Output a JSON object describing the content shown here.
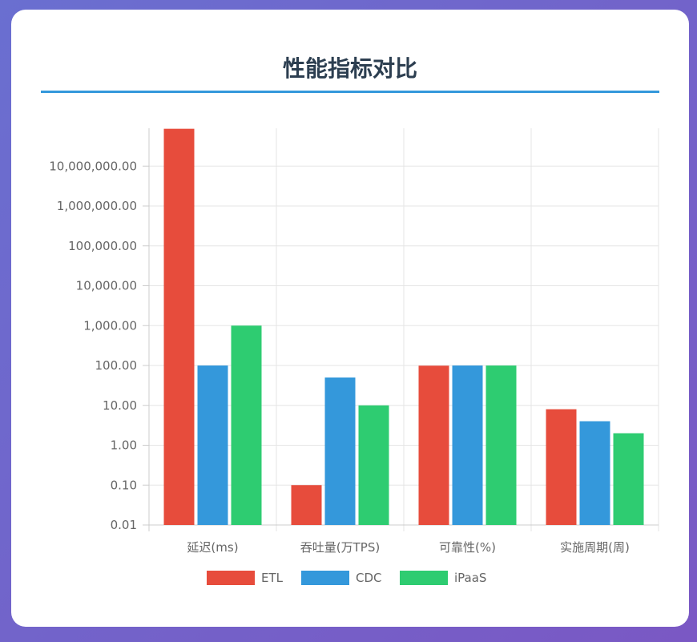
{
  "title": "性能指标对比",
  "chart_data": {
    "type": "bar",
    "yscale": "log",
    "ylim": [
      0.01,
      100000000
    ],
    "ytick_labels": [
      "0.01",
      "0.10",
      "1.00",
      "10.00",
      "100.00",
      "1,000.00",
      "10,000.00",
      "100,000.00",
      "1,000,000.00",
      "10,000,000.00"
    ],
    "categories": [
      "延迟(ms)",
      "吞吐量(万TPS)",
      "可靠性(%)",
      "实施周期(周)"
    ],
    "series": [
      {
        "name": "ETL",
        "color": "#e74c3c",
        "values": [
          86400000,
          0.1,
          99,
          8
        ]
      },
      {
        "name": "CDC",
        "color": "#3498db",
        "values": [
          100,
          50,
          99.99,
          4
        ]
      },
      {
        "name": "iPaaS",
        "color": "#2ecc71",
        "values": [
          1000,
          10,
          99.9,
          2
        ]
      }
    ],
    "legend": "bottom",
    "grid": true
  }
}
